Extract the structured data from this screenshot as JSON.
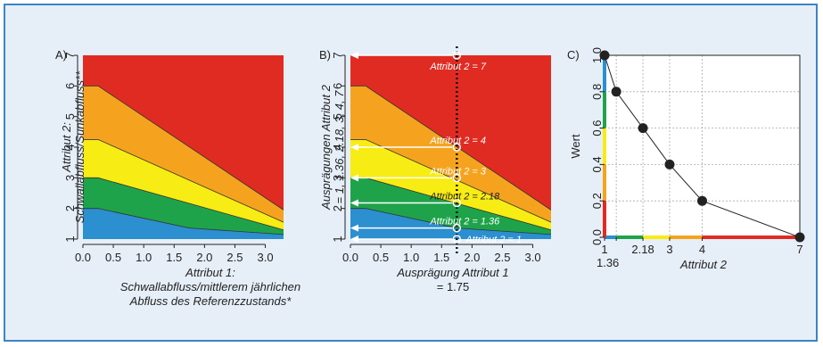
{
  "chart_data": [
    {
      "panel": "A)",
      "type": "area",
      "x_ticks": [
        "0.0",
        "0.5",
        "1.0",
        "1.5",
        "2.0",
        "2.5",
        "3.0"
      ],
      "y_ticks": [
        "1",
        "2",
        "3",
        "4",
        "5",
        "6",
        "7"
      ],
      "xlim": [
        0,
        3.3
      ],
      "ylim": [
        1,
        7
      ],
      "xlabel": [
        "Attribut 1:",
        "Schwallabfluss/mittlerem jährlichen",
        "Abfluss des Referenzzustands*"
      ],
      "ylabel": [
        "Attribut 2:",
        "Schwallabfluss/Sunkabfluss**"
      ],
      "colors": [
        "#2b8fd0",
        "#1fa34a",
        "#f7ec13",
        "#f5a31f",
        "#e02b22"
      ],
      "boundaries": [
        {
          "x": [
            0,
            0.25,
            1.75,
            3.3
          ],
          "y": [
            2,
            2,
            1.36,
            1.15
          ]
        },
        {
          "x": [
            0,
            0.25,
            3.3
          ],
          "y": [
            3,
            3,
            1.3
          ]
        },
        {
          "x": [
            0,
            0.25,
            3.3
          ],
          "y": [
            4.25,
            4.25,
            1.55
          ]
        },
        {
          "x": [
            0,
            0.25,
            3.3
          ],
          "y": [
            6,
            6,
            1.95
          ]
        }
      ]
    },
    {
      "panel": "B)",
      "type": "area",
      "x_ticks": [
        "0.0",
        "0.5",
        "1.0",
        "1.5",
        "2.0",
        "2.5",
        "3.0"
      ],
      "y_ticks": [
        "1",
        "2",
        "3",
        "4",
        "5",
        "6",
        "7"
      ],
      "xlim": [
        0,
        3.3
      ],
      "ylim": [
        1,
        7
      ],
      "xlabel": [
        "Ausprägung Attribut 1",
        "= 1.75"
      ],
      "ylabel": [
        "Ausprägungen Attribut 2",
        "= 1, 1.36, 2.18, 3, 4, 7"
      ],
      "vline_x": 1.75,
      "annotations": [
        {
          "y": 7,
          "label": "Attribut 2 = 7"
        },
        {
          "y": 4,
          "label": "Attribut 2 = 4"
        },
        {
          "y": 3,
          "label": "Attribut 2 = 3"
        },
        {
          "y": 2.18,
          "label": "Attribut 2 = 2.18"
        },
        {
          "y": 1.36,
          "label": "Attribut 2 = 1.36"
        },
        {
          "y": 1,
          "label": "Attribut 2 = 1"
        }
      ]
    },
    {
      "panel": "C)",
      "type": "line",
      "x": [
        1,
        1.36,
        2.18,
        3,
        4,
        7
      ],
      "y": [
        1.0,
        0.8,
        0.6,
        0.4,
        0.2,
        0.0
      ],
      "x_tick_labels": [
        "1",
        "2.18",
        "3",
        "4",
        "7"
      ],
      "x_tick_label_below": "1.36",
      "y_ticks": [
        "0.0",
        "0.2",
        "0.4",
        "0.6",
        "0.8",
        "1.0"
      ],
      "xlim": [
        1,
        7
      ],
      "ylim": [
        0,
        1
      ],
      "xlabel": "Attribut 2",
      "ylabel": "Wert",
      "grid": true
    }
  ]
}
